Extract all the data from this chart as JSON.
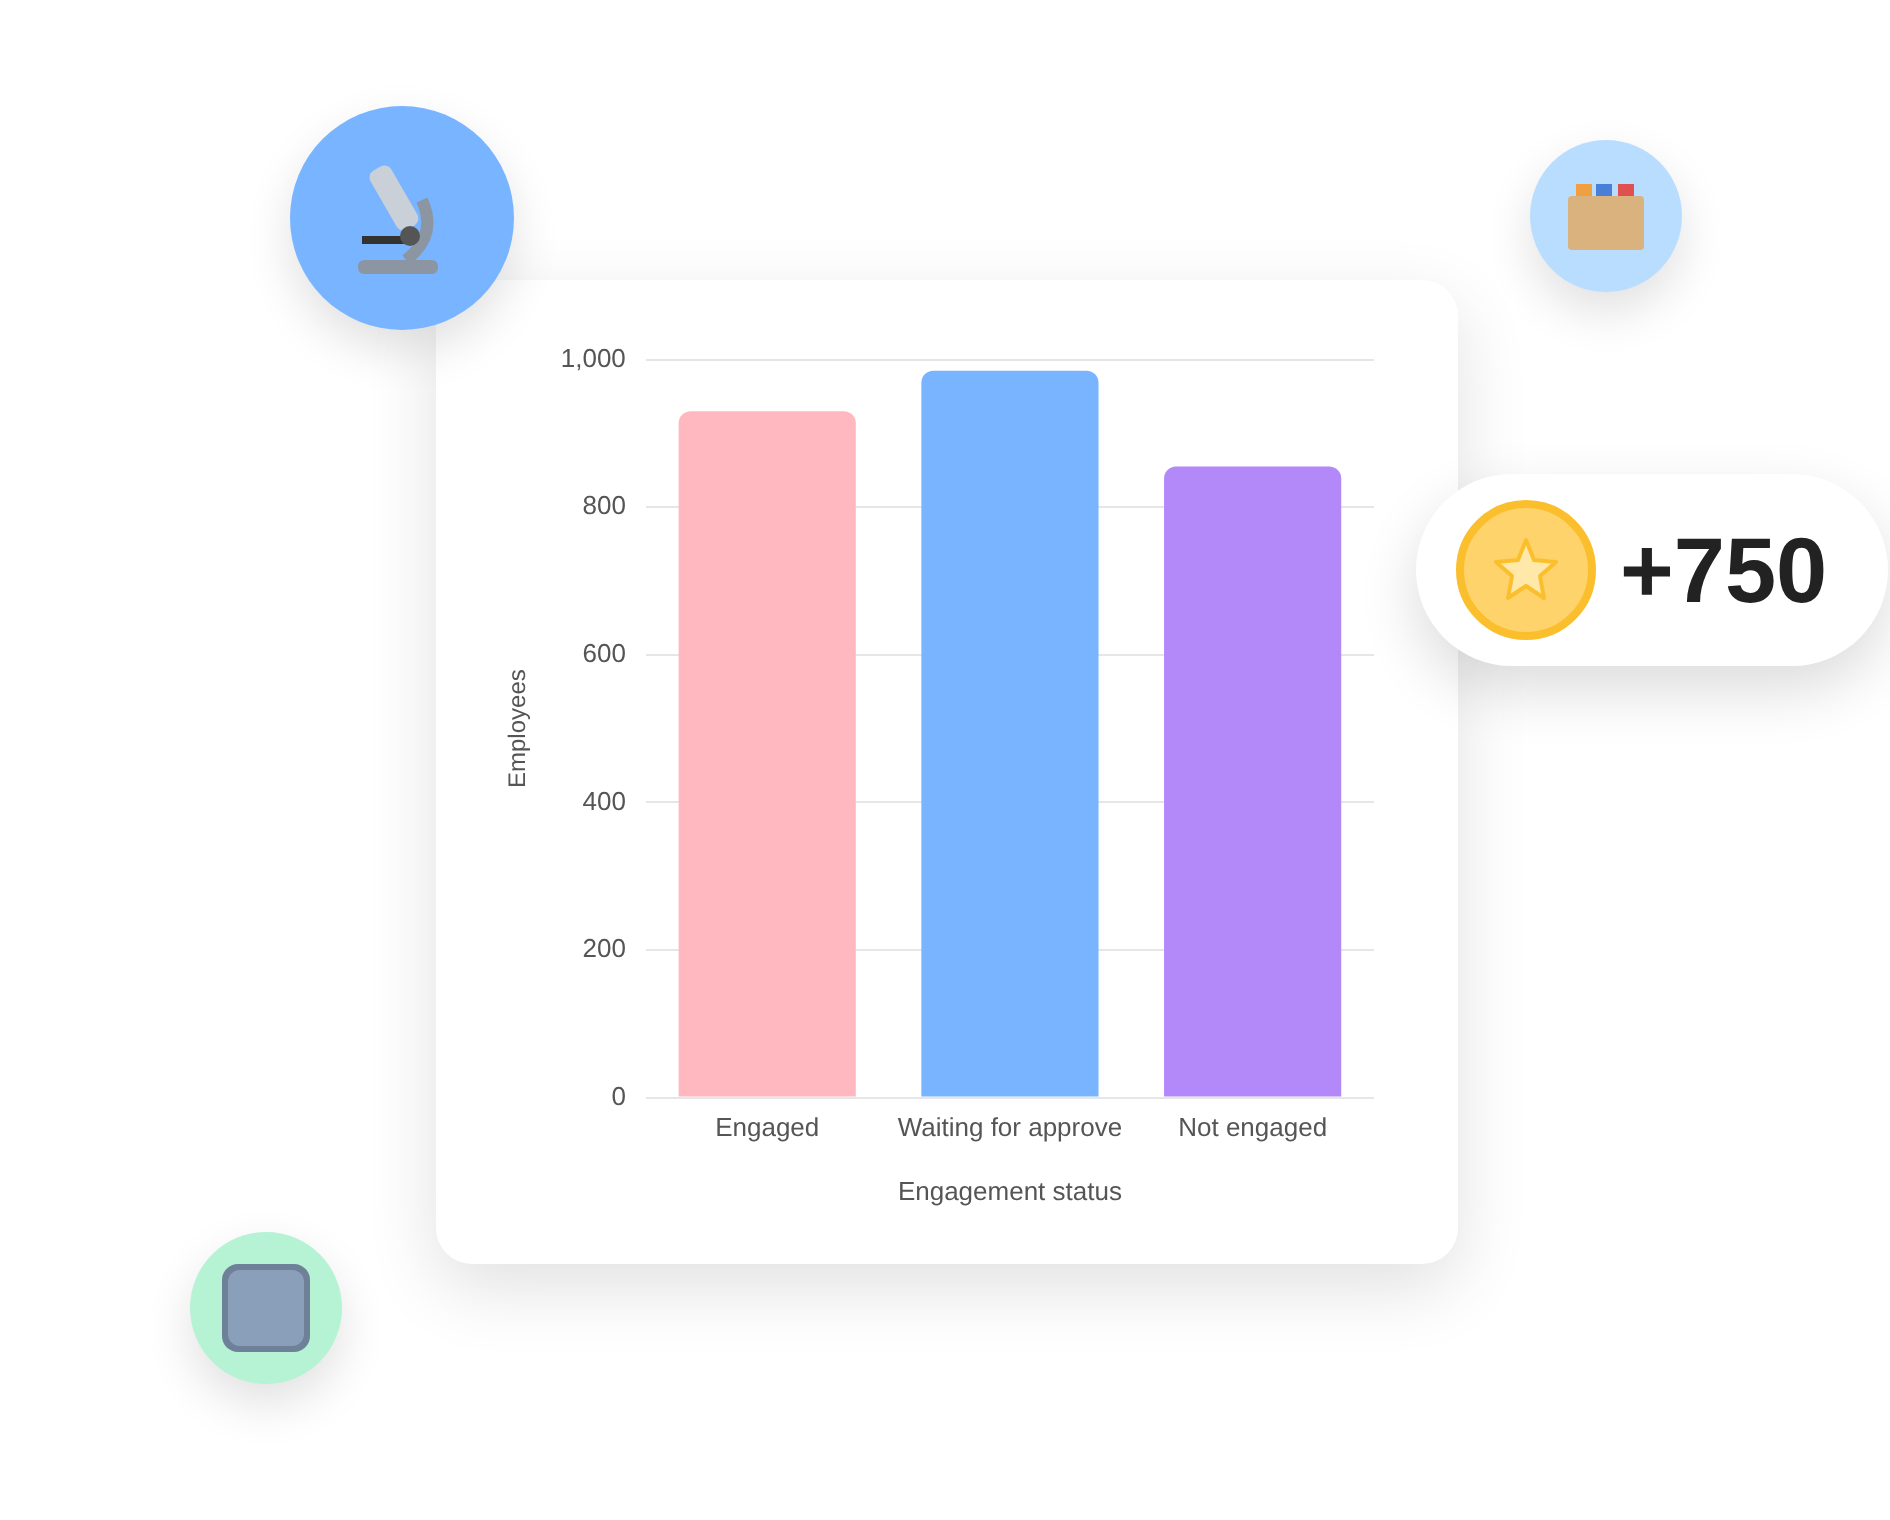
{
  "chart_data": {
    "type": "bar",
    "xlabel": "Engagement status",
    "ylabel": "Employees",
    "categories": [
      "Engaged",
      "Waiting for approve",
      "Not engaged"
    ],
    "values": [
      930,
      985,
      855
    ],
    "colors": [
      "#ffb8c0",
      "#78b4ff",
      "#b389fa"
    ],
    "ylim": [
      0,
      1000
    ],
    "yticks": [
      0,
      200,
      400,
      600,
      800,
      {
        "value": 1000,
        "label": "1,000"
      }
    ],
    "grid": "y",
    "legend": false,
    "annotations": [
      "+750"
    ]
  }
}
